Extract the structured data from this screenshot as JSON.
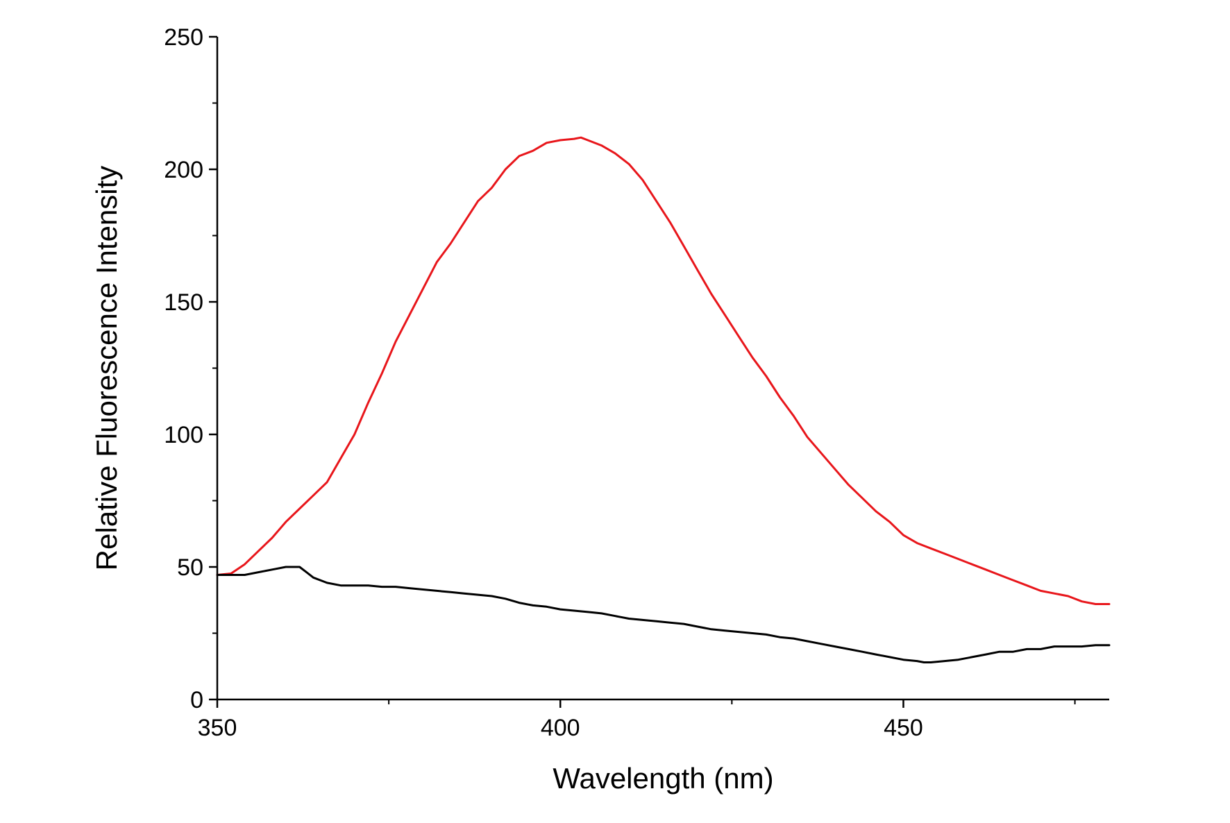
{
  "chart_data": {
    "type": "line",
    "title": "",
    "xlabel": "Wavelength (nm)",
    "ylabel": "Relative Fluorescence Intensity",
    "xlim": [
      350,
      480
    ],
    "ylim": [
      0,
      250
    ],
    "x_ticks": [
      350,
      400,
      450
    ],
    "x_minor_ticks": [
      375,
      425,
      475
    ],
    "y_ticks": [
      0,
      50,
      100,
      150,
      200,
      250
    ],
    "y_minor_ticks": [
      25,
      75,
      125,
      175,
      225
    ],
    "grid": false,
    "legend": "none",
    "series": [
      {
        "color": "#e8161b",
        "x": [
          350,
          352,
          354,
          356,
          358,
          360,
          362,
          364,
          366,
          368,
          370,
          372,
          374,
          376,
          378,
          380,
          382,
          384,
          386,
          388,
          390,
          392,
          394,
          396,
          398,
          400,
          402,
          403,
          404,
          406,
          408,
          410,
          412,
          414,
          416,
          418,
          420,
          422,
          424,
          426,
          428,
          430,
          432,
          434,
          436,
          438,
          440,
          442,
          444,
          446,
          448,
          450,
          452,
          454,
          456,
          458,
          460,
          462,
          464,
          466,
          468,
          470,
          472,
          474,
          476,
          478,
          480
        ],
        "y": [
          47,
          47.5,
          51,
          56,
          61,
          67,
          72,
          77,
          82,
          91,
          100,
          112,
          123,
          135,
          145,
          155,
          165,
          172,
          180,
          188,
          193,
          200,
          205,
          207,
          210,
          211,
          211.5,
          212,
          211,
          209,
          206,
          202,
          196,
          188,
          180,
          171,
          162,
          153,
          145,
          137,
          129,
          122,
          114,
          107,
          99,
          93,
          87,
          81,
          76,
          71,
          67,
          62,
          59,
          57,
          55,
          53,
          51,
          49,
          47,
          45,
          43,
          41,
          40,
          39,
          37,
          36,
          36
        ]
      },
      {
        "color": "#000000",
        "x": [
          350,
          352,
          354,
          356,
          358,
          360,
          361,
          362,
          363,
          364,
          366,
          368,
          370,
          372,
          374,
          376,
          378,
          380,
          382,
          384,
          386,
          388,
          390,
          392,
          394,
          396,
          398,
          400,
          402,
          404,
          406,
          408,
          410,
          412,
          414,
          416,
          418,
          420,
          422,
          424,
          426,
          428,
          430,
          432,
          434,
          436,
          438,
          440,
          442,
          444,
          446,
          448,
          450,
          452,
          453,
          454,
          456,
          458,
          460,
          462,
          464,
          466,
          468,
          470,
          472,
          474,
          476,
          478,
          480
        ],
        "y": [
          47,
          47,
          47,
          48,
          49,
          50,
          50,
          50,
          48,
          46,
          44,
          43,
          43,
          43,
          42.5,
          42.5,
          42,
          41.5,
          41,
          40.5,
          40,
          39.5,
          39,
          38,
          36.5,
          35.5,
          35,
          34,
          33.5,
          33,
          32.5,
          31.5,
          30.5,
          30,
          29.5,
          29,
          28.5,
          27.5,
          26.5,
          26,
          25.5,
          25,
          24.5,
          23.5,
          23,
          22,
          21,
          20,
          19,
          18,
          17,
          16,
          15,
          14.5,
          14,
          14,
          14.5,
          15,
          16,
          17,
          18,
          18,
          19,
          19,
          20,
          20,
          20,
          20.5,
          20.5
        ]
      }
    ]
  }
}
